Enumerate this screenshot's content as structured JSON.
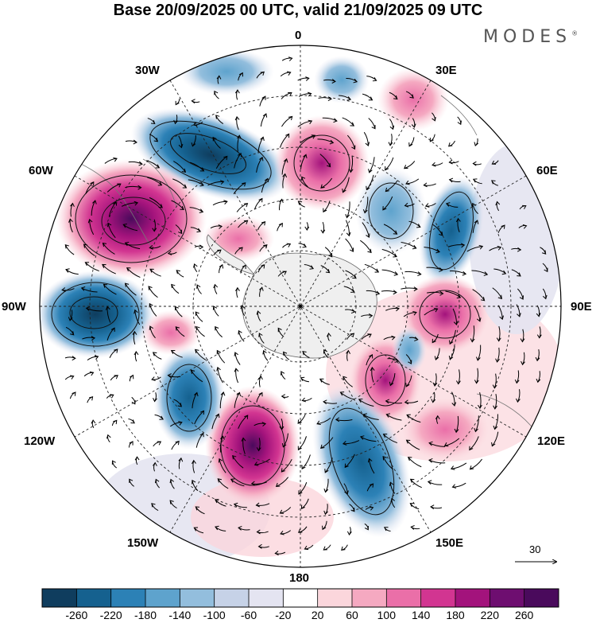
{
  "title": "Base 20/09/2025 00 UTC, valid 21/09/2025 09 UTC",
  "brand": "MODES",
  "brand_mark": "®",
  "longitude_labels": {
    "lon_0": "0",
    "lon_30e": "30E",
    "lon_60e": "60E",
    "lon_90e": "90E",
    "lon_120e": "120E",
    "lon_150e": "150E",
    "lon_180": "180",
    "lon_150w": "150W",
    "lon_120w": "120W",
    "lon_90w": "90W",
    "lon_60w": "60W",
    "lon_30w": "30W"
  },
  "wind_scale": {
    "value": "30"
  },
  "colorbar": {
    "ticks": [
      "-260",
      "-220",
      "-180",
      "-140",
      "-100",
      "-60",
      "-20",
      "20",
      "60",
      "100",
      "140",
      "180",
      "220",
      "260"
    ],
    "colors": [
      "#0f3d5e",
      "#15618f",
      "#2c81b6",
      "#5ea3cd",
      "#93bedd",
      "#c6d2e7",
      "#e4e4f1",
      "#ffffff",
      "#fbd6dc",
      "#f5a9c1",
      "#ea6fa8",
      "#d23591",
      "#a3137c",
      "#6e0e70",
      "#4a0a5c"
    ]
  },
  "anomaly_centers": [
    {
      "sign": "negative",
      "value": -260,
      "lon_deg": -30,
      "lat_deg": -45
    },
    {
      "sign": "positive",
      "value": 260,
      "lon_deg": -62,
      "lat_deg": -40
    },
    {
      "sign": "negative",
      "value": -220,
      "lon_deg": -95,
      "lat_deg": -38
    },
    {
      "sign": "positive",
      "value": 180,
      "lon_deg": 10,
      "lat_deg": -55
    },
    {
      "sign": "negative",
      "value": -140,
      "lon_deg": 55,
      "lat_deg": -58
    },
    {
      "sign": "negative",
      "value": -100,
      "lon_deg": 37,
      "lat_deg": -60
    },
    {
      "sign": "positive",
      "value": 140,
      "lon_deg": 92,
      "lat_deg": -55
    },
    {
      "sign": "positive",
      "value": 140,
      "lon_deg": 117,
      "lat_deg": -63
    },
    {
      "sign": "positive",
      "value": 140,
      "lon_deg": 113,
      "lat_deg": -42
    },
    {
      "sign": "negative",
      "value": -180,
      "lon_deg": 147,
      "lat_deg": -50
    },
    {
      "sign": "positive",
      "value": 260,
      "lon_deg": -165,
      "lat_deg": -48
    },
    {
      "sign": "negative",
      "value": -180,
      "lon_deg": -135,
      "lat_deg": -52
    }
  ]
}
